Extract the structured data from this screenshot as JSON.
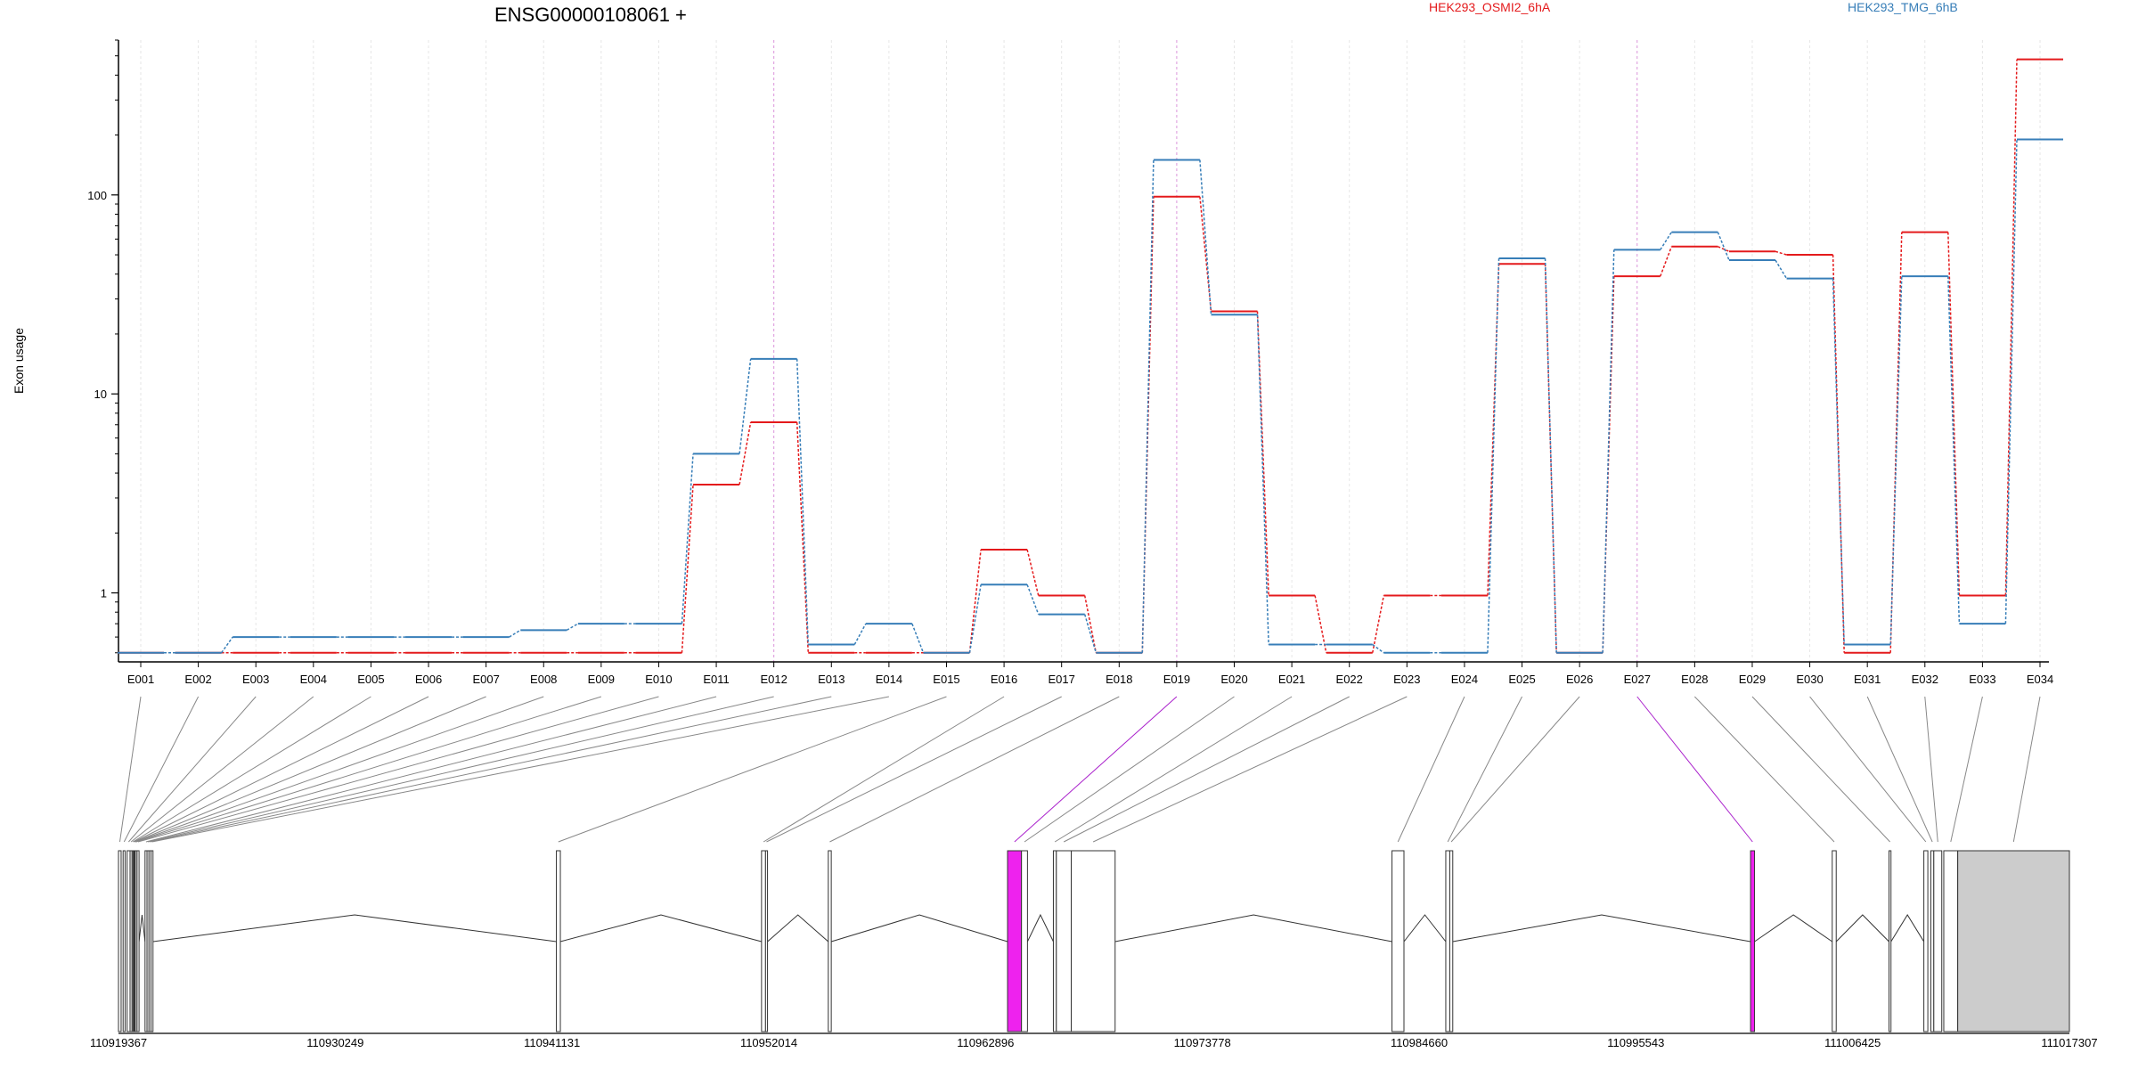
{
  "chart_data": {
    "type": "line",
    "title": "ENSG00000108061 +",
    "xlabel": "",
    "ylabel": "Exon usage",
    "y_scale": "log",
    "ylim": [
      0.45,
      600
    ],
    "y_ticks": [
      {
        "value": 1,
        "label": "1"
      },
      {
        "value": 10,
        "label": "10"
      },
      {
        "value": 100,
        "label": "100"
      }
    ],
    "categories": [
      "E001",
      "E002",
      "E003",
      "E004",
      "E005",
      "E006",
      "E007",
      "E008",
      "E009",
      "E010",
      "E011",
      "E012",
      "E013",
      "E014",
      "E015",
      "E016",
      "E017",
      "E018",
      "E019",
      "E020",
      "E021",
      "E022",
      "E023",
      "E024",
      "E025",
      "E026",
      "E027",
      "E028",
      "E029",
      "E030",
      "E031",
      "E032",
      "E033",
      "E034"
    ],
    "series": [
      {
        "name": "HEK293_OSMI2_6hA",
        "color": "#e41a1c",
        "values": [
          0.5,
          0.5,
          0.5,
          0.5,
          0.5,
          0.5,
          0.5,
          0.5,
          0.5,
          0.5,
          3.5,
          7.2,
          0.5,
          0.5,
          0.5,
          1.65,
          0.97,
          0.5,
          98,
          26,
          0.97,
          0.5,
          0.97,
          0.97,
          45,
          0.5,
          39,
          55,
          52,
          50,
          0.5,
          65,
          0.97,
          480
        ]
      },
      {
        "name": "HEK293_TMG_6hB",
        "color": "#377eb8",
        "values": [
          0.5,
          0.5,
          0.6,
          0.6,
          0.6,
          0.6,
          0.6,
          0.65,
          0.7,
          0.7,
          5,
          15,
          0.55,
          0.7,
          0.5,
          1.1,
          0.78,
          0.5,
          150,
          25,
          0.55,
          0.55,
          0.5,
          0.5,
          48,
          0.5,
          53,
          65,
          47,
          38,
          0.55,
          39,
          0.7,
          190
        ]
      }
    ],
    "vertical_guides": [
      {
        "category": "E012",
        "color": "#cc00cc"
      },
      {
        "category": "E019",
        "color": "#cc00cc"
      },
      {
        "category": "E027",
        "color": "#cc00cc"
      }
    ],
    "gene_model": {
      "genomic_range": [
        110919367,
        111017307
      ],
      "coordinate_ticks": [
        "110919367",
        "110930249",
        "110941131",
        "110952014",
        "110962896",
        "110973778",
        "110984660",
        "110995543",
        "111006425",
        "111017307"
      ],
      "exons": [
        {
          "id": "E001",
          "start": 110919367,
          "end": 110919500
        },
        {
          "id": "E002",
          "start": 110919600,
          "end": 110919700
        },
        {
          "id": "E003",
          "start": 110919800,
          "end": 110919950
        },
        {
          "id": "E004",
          "start": 110919950,
          "end": 110920050
        },
        {
          "id": "E005",
          "start": 110920050,
          "end": 110920100
        },
        {
          "id": "E006",
          "start": 110920100,
          "end": 110920150
        },
        {
          "id": "E007",
          "start": 110920150,
          "end": 110920180
        },
        {
          "id": "E008",
          "start": 110920180,
          "end": 110920210
        },
        {
          "id": "E009",
          "start": 110920210,
          "end": 110920240
        },
        {
          "id": "E010",
          "start": 110920300,
          "end": 110920400
        },
        {
          "id": "E011",
          "start": 110920700,
          "end": 110920800
        },
        {
          "id": "E012",
          "start": 110920800,
          "end": 110920900
        },
        {
          "id": "E013",
          "start": 110920900,
          "end": 110921000
        },
        {
          "id": "E014",
          "start": 110921000,
          "end": 110921100
        },
        {
          "id": "E015",
          "start": 110941350,
          "end": 110941550
        },
        {
          "id": "E016",
          "start": 110951650,
          "end": 110951850
        },
        {
          "id": "E017",
          "start": 110951850,
          "end": 110951950
        },
        {
          "id": "E018",
          "start": 110955000,
          "end": 110955150
        },
        {
          "id": "E019",
          "start": 110964000,
          "end": 110964700
        },
        {
          "id": "E020",
          "start": 110964700,
          "end": 110965000
        },
        {
          "id": "E021",
          "start": 110966300,
          "end": 110966450
        },
        {
          "id": "E022",
          "start": 110966450,
          "end": 110967200
        },
        {
          "id": "E023",
          "start": 110967200,
          "end": 110969400
        },
        {
          "id": "E024",
          "start": 110983300,
          "end": 110983900
        },
        {
          "id": "E025",
          "start": 110986000,
          "end": 110986200
        },
        {
          "id": "E026",
          "start": 110986200,
          "end": 110986350
        },
        {
          "id": "E027",
          "start": 111001300,
          "end": 111001500
        },
        {
          "id": "E028",
          "start": 111005400,
          "end": 111005600
        },
        {
          "id": "E029",
          "start": 111008250,
          "end": 111008350
        },
        {
          "id": "E030",
          "start": 111010000,
          "end": 111010200
        },
        {
          "id": "E031",
          "start": 111010350,
          "end": 111010500
        },
        {
          "id": "E032",
          "start": 111010500,
          "end": 111010900
        },
        {
          "id": "E033",
          "start": 111011000,
          "end": 111011700
        },
        {
          "id": "E034",
          "start": 111011700,
          "end": 111017307
        }
      ],
      "highlight_exons": [
        "E019",
        "E027"
      ],
      "highlight_color": "#ee22ee",
      "last_exon_fill": "#cccccc"
    }
  }
}
